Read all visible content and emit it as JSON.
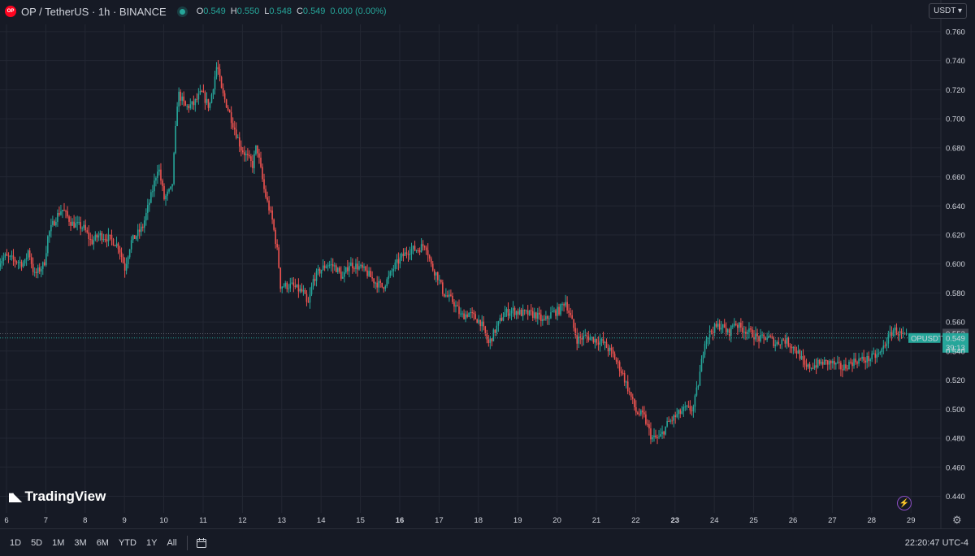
{
  "header": {
    "symbol_title": "OP / TetherUS · 1h · BINANCE",
    "logo_text": "OP",
    "ohlc": [
      {
        "key": "O",
        "value": "0.549"
      },
      {
        "key": "H",
        "value": "0.550"
      },
      {
        "key": "L",
        "value": "0.548"
      },
      {
        "key": "C",
        "value": "0.549"
      },
      {
        "key": "",
        "value": "0.000 (0.00%)"
      }
    ]
  },
  "currency_button": "USDT",
  "brand": "TradingView",
  "price_labels": {
    "ref_price": "0.552",
    "symbol": "OPUSDT",
    "last_price": "0.549",
    "countdown": "39:13"
  },
  "bottom_bar": {
    "ranges": [
      "1D",
      "5D",
      "1M",
      "3M",
      "6M",
      "YTD",
      "1Y",
      "All"
    ],
    "clock": "22:20:47 UTC-4"
  },
  "colors": {
    "up": "#26a69a",
    "down": "#ef5350",
    "background": "#161a25",
    "grid": "#232733"
  },
  "icons": [
    "calendar-icon",
    "lightning-icon",
    "settings-gear-icon"
  ],
  "chart_data": {
    "type": "candlestick",
    "title": "OP / TetherUS · 1h · BINANCE",
    "xlabel": "",
    "ylabel": "",
    "ylim": [
      0.433,
      0.765
    ],
    "grid": true,
    "y_ticks": [
      "0.760",
      "0.740",
      "0.720",
      "0.700",
      "0.680",
      "0.660",
      "0.640",
      "0.620",
      "0.600",
      "0.580",
      "0.560",
      "0.540",
      "0.520",
      "0.500",
      "0.480",
      "0.460",
      "0.440"
    ],
    "x_ticks": [
      {
        "label": "6",
        "day": 6
      },
      {
        "label": "7",
        "day": 7
      },
      {
        "label": "8",
        "day": 8
      },
      {
        "label": "9",
        "day": 9
      },
      {
        "label": "10",
        "day": 10
      },
      {
        "label": "11",
        "day": 11
      },
      {
        "label": "12",
        "day": 12
      },
      {
        "label": "13",
        "day": 13
      },
      {
        "label": "14",
        "day": 14
      },
      {
        "label": "15",
        "day": 15
      },
      {
        "label": "16",
        "day": 16,
        "bold": true
      },
      {
        "label": "17",
        "day": 17
      },
      {
        "label": "18",
        "day": 18
      },
      {
        "label": "19",
        "day": 19
      },
      {
        "label": "20",
        "day": 20
      },
      {
        "label": "21",
        "day": 21
      },
      {
        "label": "22",
        "day": 22
      },
      {
        "label": "23",
        "day": 23,
        "bold": true
      },
      {
        "label": "24",
        "day": 24
      },
      {
        "label": "25",
        "day": 25
      },
      {
        "label": "26",
        "day": 26
      },
      {
        "label": "27",
        "day": 27
      },
      {
        "label": "28",
        "day": 28
      },
      {
        "label": "29",
        "day": 29
      }
    ],
    "reference_price": 0.552,
    "last_price": 0.549,
    "price_path": [
      [
        5.8,
        0.6
      ],
      [
        6.0,
        0.605
      ],
      [
        6.3,
        0.602
      ],
      [
        6.5,
        0.6
      ],
      [
        6.6,
        0.61
      ],
      [
        6.75,
        0.592
      ],
      [
        7.0,
        0.6
      ],
      [
        7.1,
        0.62
      ],
      [
        7.3,
        0.632
      ],
      [
        7.45,
        0.638
      ],
      [
        7.7,
        0.628
      ],
      [
        8.0,
        0.625
      ],
      [
        8.2,
        0.615
      ],
      [
        8.4,
        0.62
      ],
      [
        8.7,
        0.617
      ],
      [
        8.9,
        0.612
      ],
      [
        9.05,
        0.597
      ],
      [
        9.2,
        0.615
      ],
      [
        9.5,
        0.625
      ],
      [
        9.75,
        0.65
      ],
      [
        9.9,
        0.668
      ],
      [
        10.05,
        0.645
      ],
      [
        10.25,
        0.652
      ],
      [
        10.4,
        0.718
      ],
      [
        10.6,
        0.708
      ],
      [
        10.8,
        0.71
      ],
      [
        11.0,
        0.718
      ],
      [
        11.2,
        0.708
      ],
      [
        11.4,
        0.738
      ],
      [
        11.5,
        0.72
      ],
      [
        11.7,
        0.705
      ],
      [
        12.0,
        0.68
      ],
      [
        12.3,
        0.668
      ],
      [
        12.4,
        0.682
      ],
      [
        12.6,
        0.65
      ],
      [
        12.8,
        0.63
      ],
      [
        12.95,
        0.605
      ],
      [
        13.0,
        0.585
      ],
      [
        13.3,
        0.585
      ],
      [
        13.6,
        0.58
      ],
      [
        13.7,
        0.57
      ],
      [
        13.85,
        0.59
      ],
      [
        14.0,
        0.595
      ],
      [
        14.2,
        0.6
      ],
      [
        14.4,
        0.598
      ],
      [
        14.6,
        0.59
      ],
      [
        14.75,
        0.6
      ],
      [
        15.0,
        0.598
      ],
      [
        15.2,
        0.594
      ],
      [
        15.4,
        0.588
      ],
      [
        15.6,
        0.584
      ],
      [
        15.75,
        0.59
      ],
      [
        15.9,
        0.598
      ],
      [
        16.1,
        0.605
      ],
      [
        16.3,
        0.61
      ],
      [
        16.5,
        0.61
      ],
      [
        16.7,
        0.614
      ],
      [
        16.85,
        0.598
      ],
      [
        17.0,
        0.592
      ],
      [
        17.15,
        0.58
      ],
      [
        17.4,
        0.574
      ],
      [
        17.6,
        0.564
      ],
      [
        17.8,
        0.566
      ],
      [
        18.1,
        0.56
      ],
      [
        18.3,
        0.545
      ],
      [
        18.5,
        0.556
      ],
      [
        18.7,
        0.566
      ],
      [
        18.9,
        0.568
      ],
      [
        19.15,
        0.566
      ],
      [
        19.5,
        0.565
      ],
      [
        19.7,
        0.56
      ],
      [
        19.9,
        0.566
      ],
      [
        20.1,
        0.568
      ],
      [
        20.25,
        0.575
      ],
      [
        20.4,
        0.562
      ],
      [
        20.55,
        0.548
      ],
      [
        20.8,
        0.55
      ],
      [
        21.0,
        0.548
      ],
      [
        21.2,
        0.546
      ],
      [
        21.45,
        0.538
      ],
      [
        21.7,
        0.525
      ],
      [
        21.9,
        0.51
      ],
      [
        22.05,
        0.498
      ],
      [
        22.25,
        0.495
      ],
      [
        22.45,
        0.48
      ],
      [
        22.65,
        0.48
      ],
      [
        22.85,
        0.49
      ],
      [
        23.1,
        0.496
      ],
      [
        23.3,
        0.5
      ],
      [
        23.5,
        0.5
      ],
      [
        23.65,
        0.52
      ],
      [
        23.8,
        0.548
      ],
      [
        24.0,
        0.555
      ],
      [
        24.2,
        0.558
      ],
      [
        24.4,
        0.552
      ],
      [
        24.55,
        0.56
      ],
      [
        24.7,
        0.556
      ],
      [
        25.0,
        0.552
      ],
      [
        25.2,
        0.548
      ],
      [
        25.4,
        0.55
      ],
      [
        25.6,
        0.545
      ],
      [
        25.8,
        0.548
      ],
      [
        26.0,
        0.544
      ],
      [
        26.2,
        0.538
      ],
      [
        26.35,
        0.528
      ],
      [
        26.55,
        0.53
      ],
      [
        26.8,
        0.532
      ],
      [
        27.0,
        0.532
      ],
      [
        27.3,
        0.528
      ],
      [
        27.5,
        0.532
      ],
      [
        27.7,
        0.534
      ],
      [
        27.9,
        0.534
      ],
      [
        28.1,
        0.536
      ],
      [
        28.25,
        0.538
      ],
      [
        28.4,
        0.546
      ],
      [
        28.6,
        0.555
      ],
      [
        28.75,
        0.552
      ],
      [
        28.9,
        0.549
      ]
    ]
  }
}
